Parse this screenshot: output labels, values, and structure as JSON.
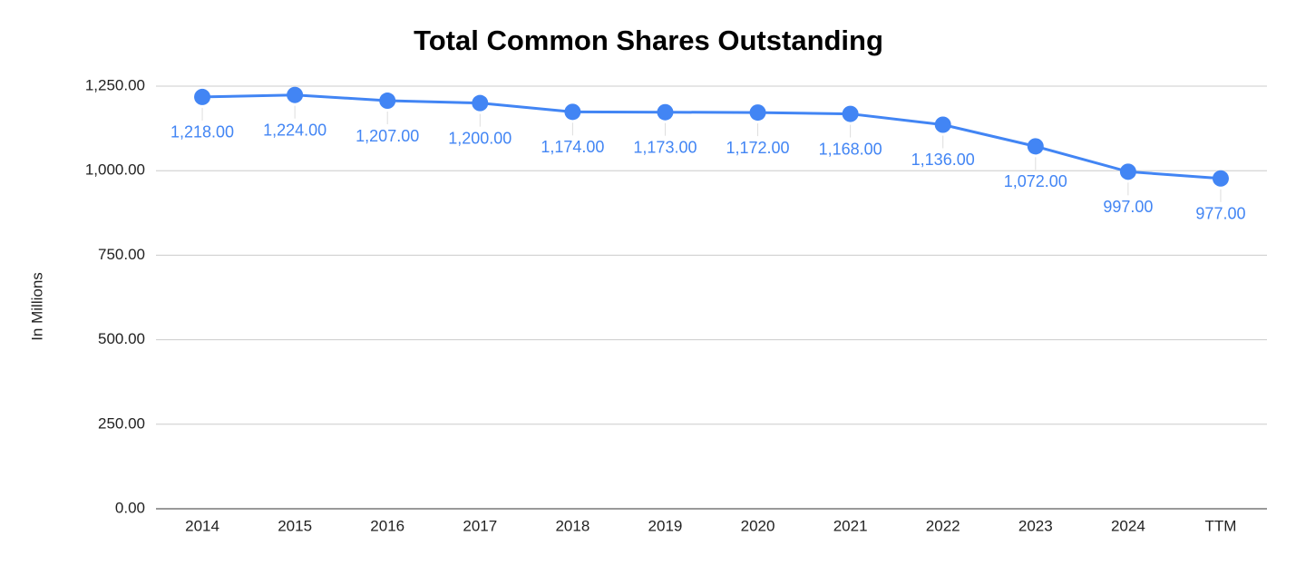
{
  "chart_data": {
    "type": "line",
    "title": "Total Common Shares Outstanding",
    "y_label": "In Millions",
    "categories": [
      "2014",
      "2015",
      "2016",
      "2017",
      "2018",
      "2019",
      "2020",
      "2021",
      "2022",
      "2023",
      "2024",
      "TTM"
    ],
    "series": [
      {
        "name": "Total Common Shares Outstanding",
        "color": "#4285f4",
        "values": [
          1218,
          1224,
          1207,
          1200,
          1174,
          1173,
          1172,
          1168,
          1136,
          1072,
          997,
          977
        ],
        "value_labels": [
          "1,218.00",
          "1,224.00",
          "1,207.00",
          "1,200.00",
          "1,174.00",
          "1,173.00",
          "1,172.00",
          "1,168.00",
          "1,136.00",
          "1,072.00",
          "997.00",
          "977.00"
        ]
      }
    ],
    "ylim": [
      0,
      1250
    ],
    "yticks": [
      {
        "value": 0,
        "label": "0.00"
      },
      {
        "value": 250,
        "label": "250.00"
      },
      {
        "value": 500,
        "label": "500.00"
      },
      {
        "value": 750,
        "label": "750.00"
      },
      {
        "value": 1000,
        "label": "1,000.00"
      },
      {
        "value": 1250,
        "label": "1,250.00"
      }
    ],
    "grid": true
  }
}
